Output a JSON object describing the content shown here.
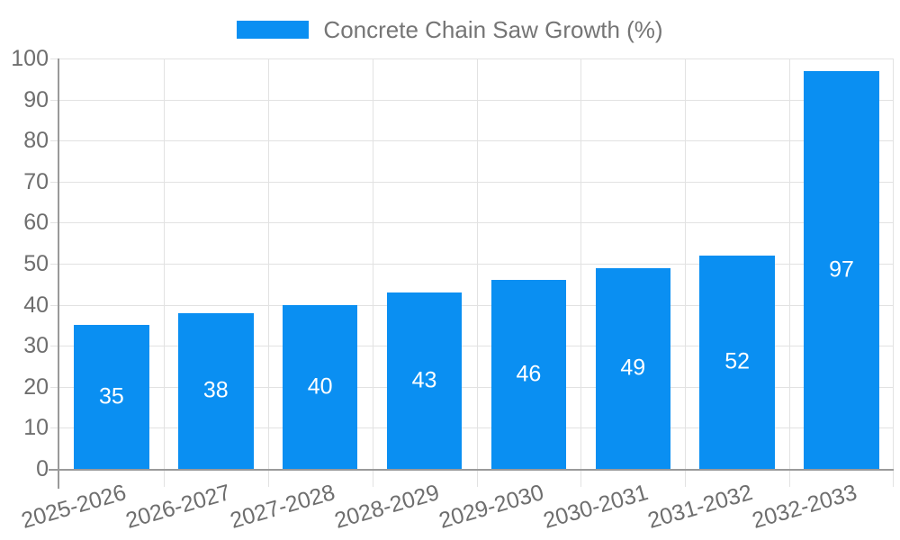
{
  "legend": {
    "label": "Concrete Chain Saw Growth (%)"
  },
  "chart_data": {
    "type": "bar",
    "title": "Concrete Chain Saw Growth (%)",
    "categories": [
      "2025-2026",
      "2026-2027",
      "2027-2028",
      "2028-2029",
      "2029-2030",
      "2030-2031",
      "2031-2032",
      "2032-2033"
    ],
    "values": [
      35,
      38,
      40,
      43,
      46,
      49,
      52,
      97
    ],
    "xlabel": "",
    "ylabel": "",
    "ylim": [
      0,
      100
    ],
    "ytick_step": 10,
    "grid": "on",
    "legend_position": "top-center",
    "x_label_rotation_deg": -16,
    "value_labels": "inside-center",
    "colors": {
      "bar": "#0a8ff2",
      "grid": "#e2e2e2",
      "axis": "#9a9a9a",
      "tick_label": "#6e6e6e",
      "legend_text": "#757575",
      "value_label": "#ffffff",
      "background": "#ffffff"
    }
  }
}
